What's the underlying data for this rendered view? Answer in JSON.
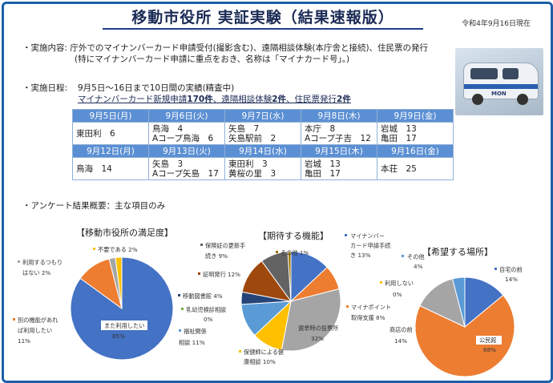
{
  "header": {
    "title": "移動市役所 実証実験（結果速報版）",
    "date": "令和4年9月16日現在"
  },
  "content": {
    "line1": "・実施内容: 庁外でのマイナンバーカード申請受付(撮影含む)、遠隔相談体験(本庁舎と接続)、住民票の発行",
    "line2": "(特にマイナンバーカード申請に重点をおき、名称は「マイナカード号」。)"
  },
  "schedule": {
    "label": "・実施日程:",
    "summary": "9月5日～16日まで10日間の実績(精査中)",
    "result_pre": "マイナンバーカード新規申請",
    "result_num1": "170件",
    "result_mid1": "、遠隔相談体験",
    "result_num2": "2件",
    "result_mid2": "、住民票発行",
    "result_num3": "2件",
    "week1": {
      "headers": [
        "9月5日(月)",
        "9月6日(火)",
        "9月7日(水)",
        "9月8日(木)",
        "9月9日(金)"
      ],
      "cells": [
        [
          "東田利　6"
        ],
        [
          "鳥海　4",
          "Aコープ鳥海　6"
        ],
        [
          "矢島　7",
          "矢島駅前　2"
        ],
        [
          "本庁　8",
          "Aコープ子吉　12"
        ],
        [
          "岩城　13",
          "亀田　17"
        ]
      ]
    },
    "week2": {
      "headers": [
        "9月12日(月)",
        "9月13日(火)",
        "9月14日(水)",
        "9月15日(木)",
        "9月16日(金)"
      ],
      "cells": [
        [
          "鳥海　14"
        ],
        [
          "矢島　3",
          "Aコープ矢島　17"
        ],
        [
          "東田利　3",
          "黄桜の里　3"
        ],
        [
          "岩城　13",
          "亀田　17"
        ],
        [
          "本荘　25"
        ]
      ]
    }
  },
  "survey": {
    "label": "・アンケート結果概要：主な項目のみ"
  },
  "photo": {
    "text": "MON"
  },
  "chart_data": [
    {
      "type": "pie",
      "title": "【移動市役所の満足度】",
      "slices": [
        {
          "label": "また利用したい",
          "value": 85,
          "text": "85%",
          "color": "#4472c4"
        },
        {
          "label": "別の機能があれば利用したい",
          "value": 11,
          "text": "11%",
          "color": "#ed7d31"
        },
        {
          "label": "利用するつもりはない",
          "value": 2,
          "text": "2%",
          "color": "#a5a5a5"
        },
        {
          "label": "不要である",
          "value": 2,
          "text": "2%",
          "color": "#ffc000"
        }
      ],
      "labels_text": {
        "main": "また利用したい",
        "main_pct": "85%",
        "other1a": "別の機能があれ",
        "other1b": "ば利用したい",
        "other1c": "11%",
        "other2a": "利用するつもり",
        "other2b": "はない 2%",
        "other3": "不要である 2%"
      }
    },
    {
      "type": "pie",
      "title": "【期待する機能】",
      "slices": [
        {
          "label": "マイナンバーカード申請手続き",
          "value": 13,
          "color": "#4472c4"
        },
        {
          "label": "マイナポイント取得支援",
          "value": 8,
          "color": "#ed7d31"
        },
        {
          "label": "選挙時の投票所",
          "value": 32,
          "color": "#a5a5a5"
        },
        {
          "label": "保健師による健康相談",
          "value": 10,
          "color": "#ffc000"
        },
        {
          "label": "福祉関係相談",
          "value": 11,
          "color": "#5b9bd5"
        },
        {
          "label": "乳幼児検診相談",
          "value": 0,
          "color": "#70ad47"
        },
        {
          "label": "移動図書館",
          "value": 4,
          "color": "#264478"
        },
        {
          "label": "証明発行",
          "value": 12,
          "color": "#9e480e"
        },
        {
          "label": "保険証の更新手続き",
          "value": 9,
          "color": "#636363"
        },
        {
          "label": "その他",
          "value": 1,
          "color": "#997300"
        }
      ],
      "labels_text": {
        "l1a": "マイナンバー",
        "l1b": "カード申請手続",
        "l1c": "き 13%",
        "l2a": "マイナポイント",
        "l2b": "取得支援 8%",
        "l3a": "選挙時の投票所",
        "l3b": "32%",
        "l4a": "保健師による健",
        "l4b": "康相談 10%",
        "l5a": "福祉関係",
        "l5b": "相談 11%",
        "l6a": "乳幼児検診相談",
        "l6b": "0%",
        "l7": "移動図書館 4%",
        "l8": "証明発行 12%",
        "l9a": "保険証の更新手",
        "l9b": "続き 9%",
        "l10": "その他 1%"
      }
    },
    {
      "type": "pie",
      "title": "【希望する場所】",
      "slices": [
        {
          "label": "自宅の前",
          "value": 14,
          "color": "#4472c4"
        },
        {
          "label": "公民館",
          "value": 68,
          "color": "#ed7d31"
        },
        {
          "label": "商店の前",
          "value": 14,
          "color": "#a5a5a5"
        },
        {
          "label": "利用しない",
          "value": 0,
          "color": "#ffc000"
        },
        {
          "label": "その他",
          "value": 4,
          "color": "#5b9bd5"
        }
      ],
      "labels_text": {
        "l1a": "自宅の前",
        "l1b": "14%",
        "l2a": "公民館",
        "l2b": "68%",
        "l3a": "商店の前",
        "l3b": "14%",
        "l4a": "利用しない",
        "l4b": "0%",
        "l5a": "その他",
        "l5b": "4%"
      }
    }
  ]
}
